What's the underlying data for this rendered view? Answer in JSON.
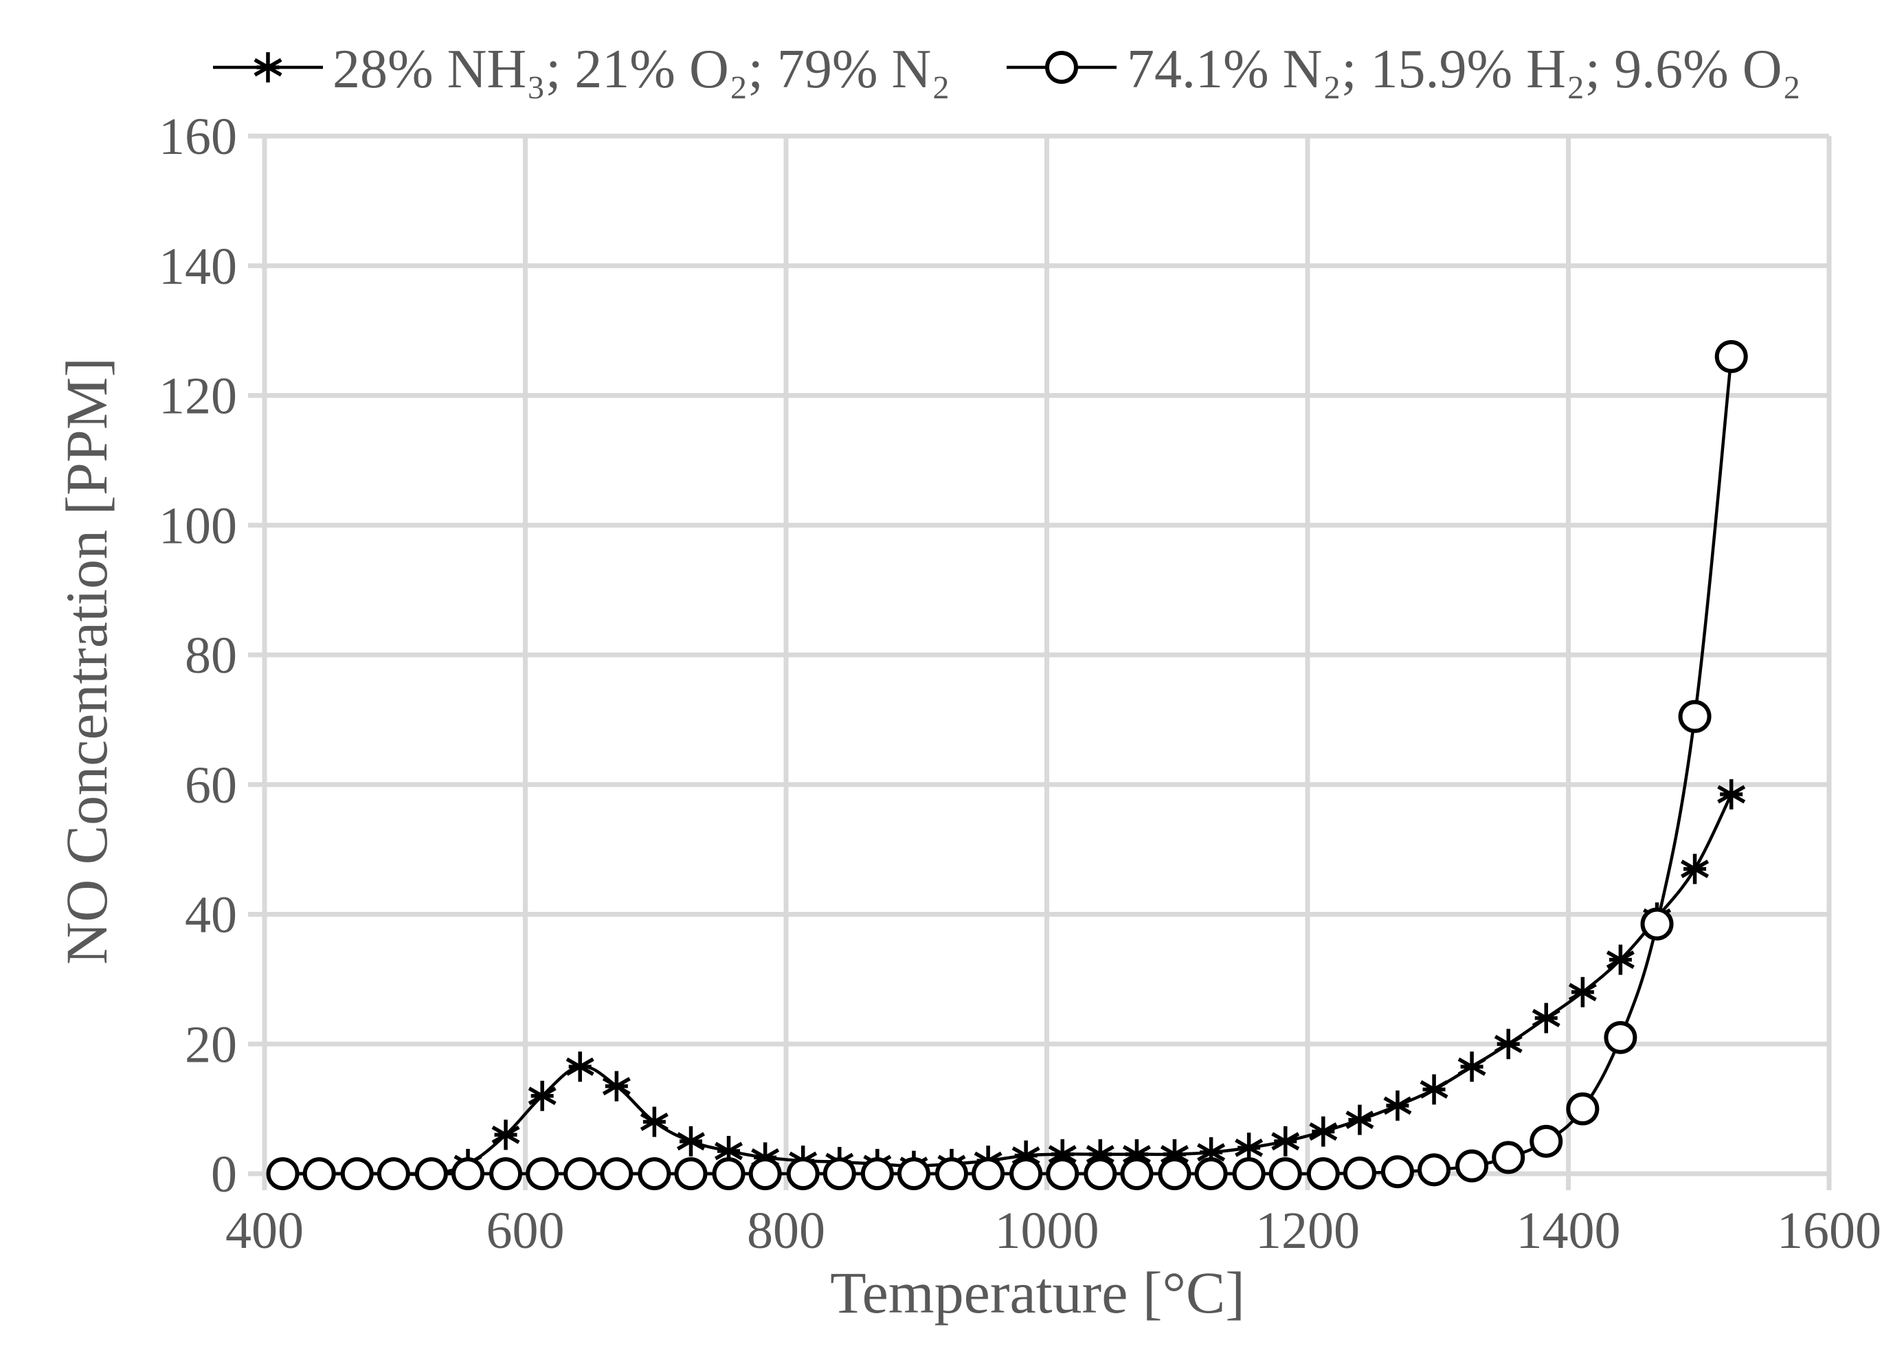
{
  "chart_data": {
    "type": "line",
    "title": "",
    "xlabel": "Temperature [°C]",
    "ylabel": "NO Concentration [PPM]",
    "xlim": [
      400,
      1600
    ],
    "ylim": [
      0,
      160
    ],
    "x_ticks": [
      400,
      600,
      800,
      1000,
      1200,
      1400,
      1600
    ],
    "y_ticks": [
      0,
      20,
      40,
      60,
      80,
      100,
      120,
      140,
      160
    ],
    "grid": true,
    "legend_position": "top",
    "series": [
      {
        "name": "28% NH₃; 21% O₂; 79% N₂",
        "marker": "asterisk",
        "color": "#000000",
        "x": [
          414,
          442,
          471,
          499,
          528,
          556,
          585,
          613,
          642,
          670,
          699,
          727,
          756,
          784,
          813,
          841,
          870,
          898,
          927,
          955,
          984,
          1012,
          1041,
          1069,
          1098,
          1126,
          1155,
          1183,
          1212,
          1240,
          1269,
          1297,
          1326,
          1354,
          1383,
          1411,
          1440,
          1468,
          1497,
          1525
        ],
        "y": [
          0,
          0,
          0,
          0,
          0,
          1.5,
          6,
          12,
          16.5,
          13.5,
          8,
          5,
          3.5,
          2.5,
          2,
          1.8,
          1.5,
          1.2,
          1.5,
          2,
          2.8,
          3,
          3,
          3,
          3,
          3.3,
          4,
          5,
          6.5,
          8.3,
          10.5,
          13,
          16.5,
          20,
          24,
          28,
          33,
          39.5,
          47,
          58.5
        ]
      },
      {
        "name": "74.1% N₂; 15.9% H₂; 9.6% O₂",
        "marker": "circle",
        "color": "#000000",
        "x": [
          414,
          442,
          471,
          499,
          528,
          556,
          585,
          613,
          642,
          670,
          699,
          727,
          756,
          784,
          813,
          841,
          870,
          898,
          927,
          955,
          984,
          1012,
          1041,
          1069,
          1098,
          1126,
          1155,
          1183,
          1212,
          1240,
          1269,
          1297,
          1326,
          1354,
          1383,
          1411,
          1440,
          1468,
          1497,
          1525
        ],
        "y": [
          0,
          0,
          0,
          0,
          0,
          0,
          0,
          0,
          0,
          0,
          0,
          0,
          0,
          0,
          0,
          0,
          0,
          0,
          0,
          0,
          0,
          0,
          0,
          0,
          0,
          0,
          0,
          0,
          0,
          0.1,
          0.3,
          0.6,
          1.2,
          2.5,
          5,
          10,
          21,
          38.5,
          70.5,
          126
        ]
      }
    ]
  }
}
